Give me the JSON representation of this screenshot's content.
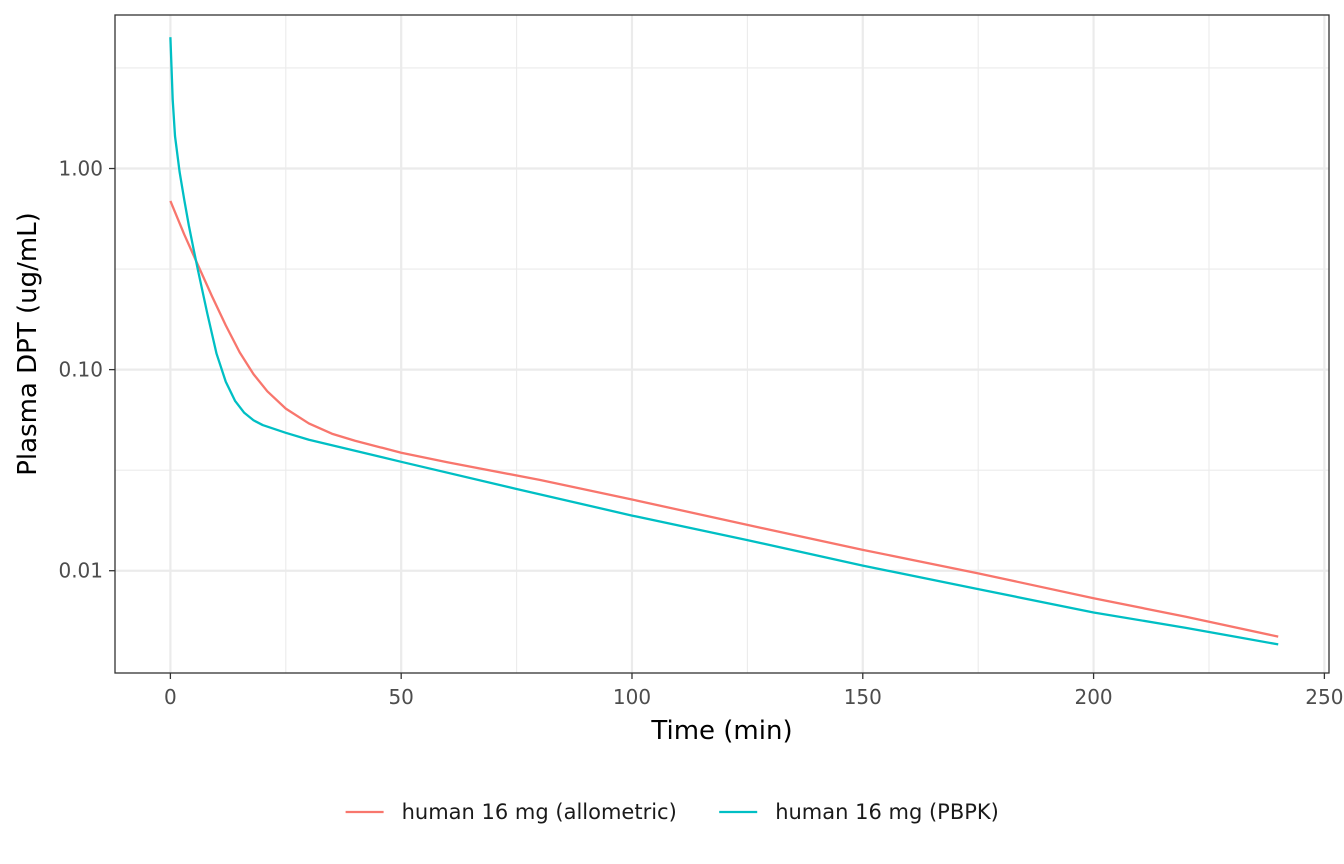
{
  "chart_data": {
    "type": "line",
    "title": "",
    "xlabel": "Time (min)",
    "ylabel": "Plasma DPT (ug/mL)",
    "xlim": [
      -12,
      251
    ],
    "ylim": [
      0.0031,
      5.8
    ],
    "y_scale": "log10",
    "x_ticks": [
      0,
      50,
      100,
      150,
      200,
      250
    ],
    "x_tick_labels": [
      "0",
      "50",
      "100",
      "150",
      "200",
      "250"
    ],
    "y_ticks": [
      0.01,
      0.1,
      1
    ],
    "y_tick_labels": [
      "0.01",
      "0.10",
      "1.00"
    ],
    "grid": true,
    "legend_position": "bottom",
    "series": [
      {
        "name": "human 16 mg (allometric)",
        "color": "#F8766D",
        "x": [
          0,
          3,
          6,
          9,
          12,
          15,
          18,
          21,
          25,
          30,
          35,
          40,
          50,
          60,
          80,
          100,
          125,
          150,
          175,
          200,
          220,
          240
        ],
        "y": [
          0.69,
          0.47,
          0.33,
          0.232,
          0.166,
          0.122,
          0.095,
          0.078,
          0.064,
          0.054,
          0.048,
          0.0443,
          0.0386,
          0.0346,
          0.0283,
          0.0226,
          0.0169,
          0.0127,
          0.0097,
          0.0073,
          0.0059,
          0.0047
        ]
      },
      {
        "name": "human 16 mg (PBPK)",
        "color": "#00BFC4",
        "x": [
          0,
          0.5,
          1,
          2,
          3,
          4,
          5,
          6,
          8,
          10,
          12,
          14,
          16,
          18,
          20,
          25,
          30,
          40,
          50,
          75,
          100,
          125,
          150,
          175,
          200,
          220,
          240
        ],
        "y": [
          4.5,
          2.2,
          1.45,
          0.96,
          0.7,
          0.52,
          0.4,
          0.31,
          0.19,
          0.12,
          0.087,
          0.07,
          0.061,
          0.056,
          0.053,
          0.0485,
          0.0448,
          0.0395,
          0.0348,
          0.0255,
          0.0188,
          0.0142,
          0.0106,
          0.0081,
          0.0062,
          0.0052,
          0.0043
        ]
      }
    ]
  }
}
